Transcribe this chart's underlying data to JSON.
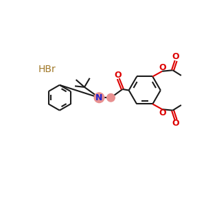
{
  "background_color": "#ffffff",
  "bond_color": "#1a1a1a",
  "N_color": "#2222cc",
  "O_color": "#dd0000",
  "HBr_color": "#a07828",
  "N_highlight": "#e89090",
  "CH2_highlight": "#e89090",
  "line_width": 1.5,
  "figsize": [
    3.0,
    3.0
  ],
  "dpi": 100,
  "xlim": [
    0,
    300
  ],
  "ylim": [
    0,
    300
  ]
}
